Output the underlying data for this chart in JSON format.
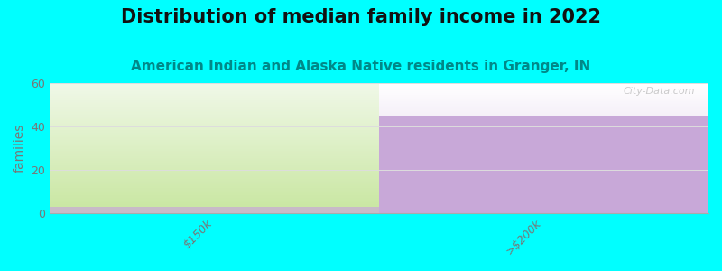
{
  "title": "Distribution of median family income in 2022",
  "subtitle": "American Indian and Alaska Native residents in Granger, IN",
  "categories": [
    "$150k",
    ">$200k"
  ],
  "values": [
    3,
    45
  ],
  "ylim": [
    0,
    60
  ],
  "yticks": [
    0,
    20,
    40,
    60
  ],
  "ylabel": "families",
  "bar_color_bottom_left": "#c8e6a0",
  "bar_color_top_left": "#f0f8e8",
  "bar_color_right": "#c8a8d8",
  "bar_color_right_top": "#f5f0f8",
  "strip_color": "#c8a8d8",
  "strip_value": 3,
  "background_color": "#00FFFF",
  "plot_bg_color": "#FFFFFF",
  "title_color": "#111111",
  "subtitle_color": "#008888",
  "tick_color": "#777777",
  "grid_color": "#dddddd",
  "watermark": "City-Data.com",
  "title_fontsize": 15,
  "subtitle_fontsize": 11,
  "ylabel_fontsize": 10
}
